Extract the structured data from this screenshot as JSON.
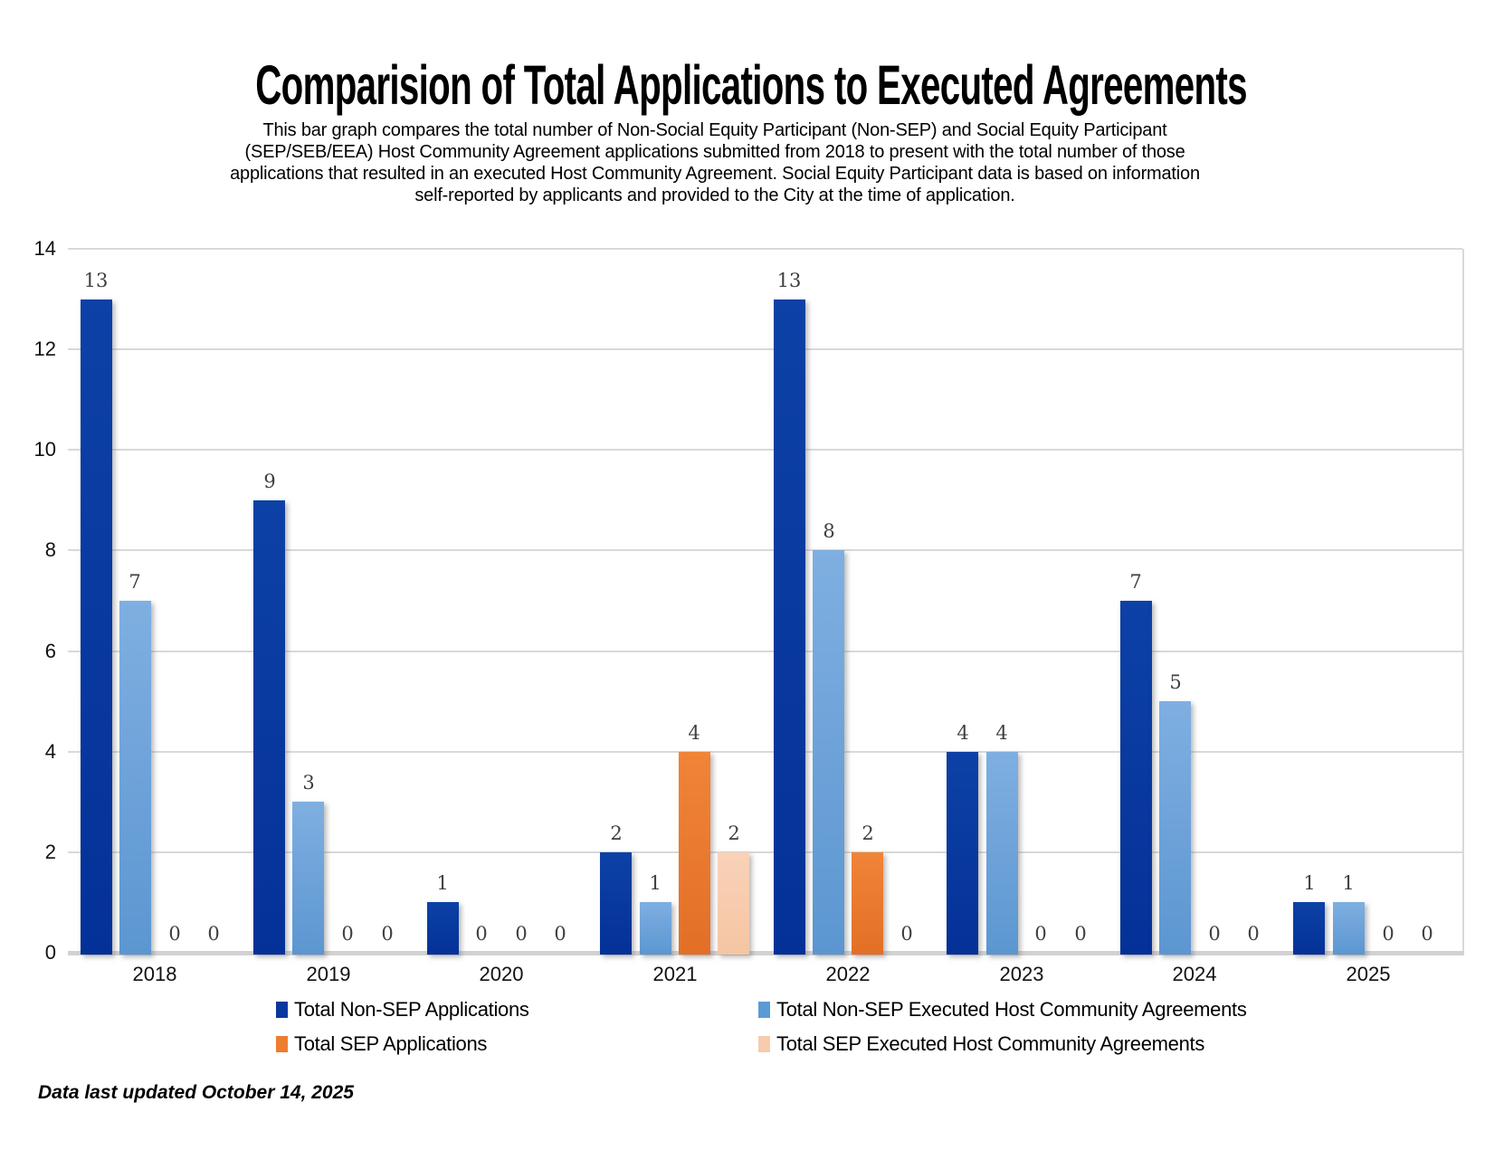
{
  "header": {
    "title": "Comparision of Total Applications to Executed Agreements",
    "subtitle_lines": [
      "This bar graph compares the total number of Non-Social Equity Participant (Non-SEP) and Social Equity Participant",
      "(SEP/SEB/EEA) Host Community Agreement applications submitted from 2018 to present with the total number of those",
      "applications that resulted in an executed Host Community Agreement. Social Equity Participant data is based on information",
      "self-reported by applicants and provided to the City at the time of application."
    ]
  },
  "chart_data": {
    "type": "bar",
    "title": "Comparision of Total Applications to Executed Agreements",
    "categories": [
      "2018",
      "2019",
      "2020",
      "2021",
      "2022",
      "2023",
      "2024",
      "2025"
    ],
    "series": [
      {
        "name": "Total Non-SEP Applications",
        "color": "#08389E",
        "gradient": [
          "#0D41A6",
          "#043197"
        ],
        "values": [
          13,
          9,
          1,
          2,
          13,
          4,
          7,
          1
        ]
      },
      {
        "name": "Total Non-SEP Executed Host Community Agreements",
        "color": "#5B9BD5",
        "gradient": [
          "#7FAFE1",
          "#5C96D1"
        ],
        "values": [
          7,
          3,
          0,
          1,
          8,
          4,
          5,
          1
        ]
      },
      {
        "name": "Total SEP Applications",
        "color": "#ED7D31",
        "gradient": [
          "#F08437",
          "#E36F27"
        ],
        "values": [
          0,
          0,
          0,
          4,
          2,
          0,
          0,
          0
        ]
      },
      {
        "name": "Total SEP Executed Host Community Agreements",
        "color": "#F8CBAD",
        "gradient": [
          "#F9D2B8",
          "#F5C5A3"
        ],
        "values": [
          0,
          0,
          0,
          2,
          0,
          0,
          0,
          0
        ]
      }
    ],
    "xlabel": "",
    "ylabel": "",
    "ylim": [
      0,
      14
    ],
    "yticks": [
      0,
      2,
      4,
      6,
      8,
      10,
      12,
      14
    ],
    "grid": "horizontal",
    "legend_position": "bottom",
    "data_labels": true,
    "gridline_color": "#D9D9D9",
    "axis_line_color": "#D2D2D2"
  },
  "footer": {
    "updated_text": "Data last updated October 14, 2025"
  }
}
